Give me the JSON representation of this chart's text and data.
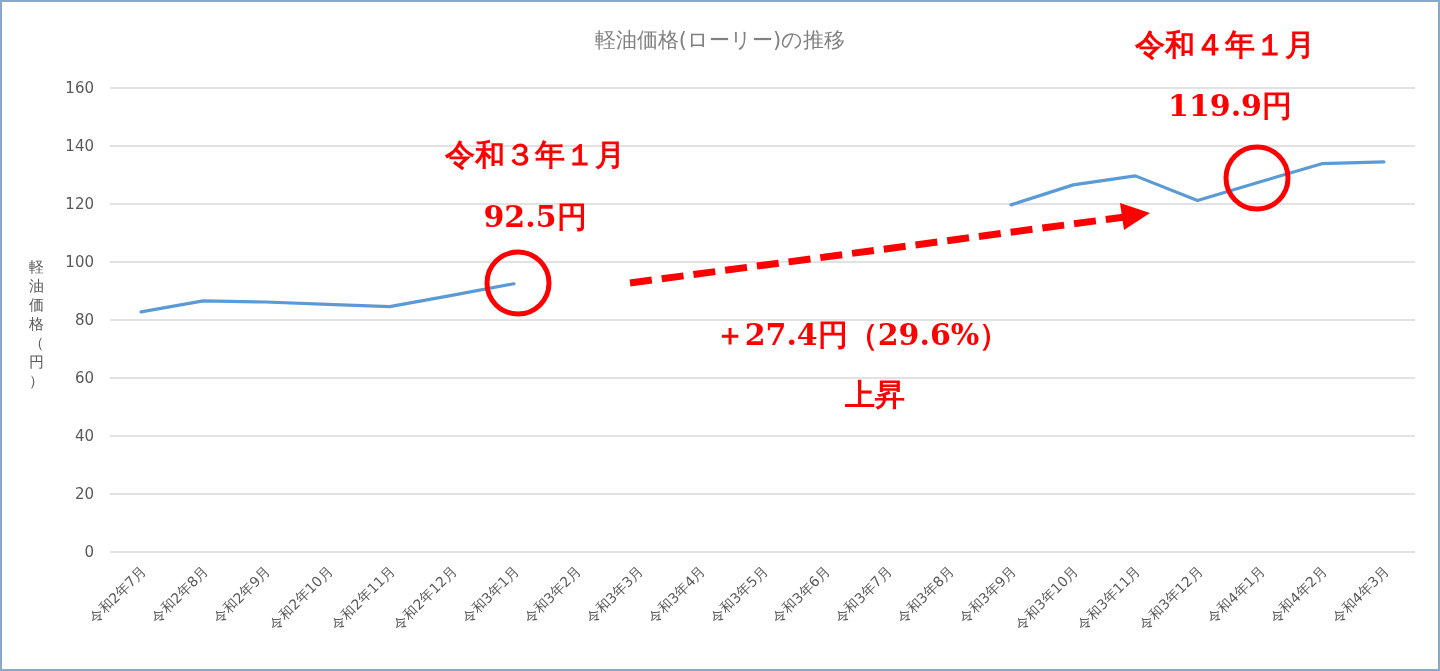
{
  "chart_data": {
    "type": "line",
    "title": "軽油価格(ローリー)の推移",
    "ylabel": "軽油価格（円）",
    "categories": [
      "令和2年7月",
      "令和2年8月",
      "令和2年9月",
      "令和2年10月",
      "令和2年11月",
      "令和2年12月",
      "令和3年1月",
      "令和3年2月",
      "令和3年3月",
      "令和3年4月",
      "令和3年5月",
      "令和3年6月",
      "令和3年7月",
      "令和3年8月",
      "令和3年9月",
      "令和3年10月",
      "令和3年11月",
      "令和3年12月",
      "令和4年1月",
      "令和4年2月",
      "令和4年3月"
    ],
    "series": [
      {
        "color": "#5b9bd5",
        "values": [
          82.8,
          86.6,
          86.2,
          85.4,
          84.6,
          88.5,
          92.5,
          null,
          null,
          null,
          null,
          null,
          null,
          null,
          119.7,
          126.6,
          129.7,
          121.2,
          127.6,
          133.9,
          134.5
        ]
      }
    ],
    "ylim": [
      0,
      160
    ],
    "yticks": [
      0,
      20,
      40,
      60,
      80,
      100,
      120,
      140,
      160
    ],
    "grid": "y",
    "marker": "none",
    "line_style": "solid",
    "annotations": [
      "令和３年１月",
      "92.5円",
      "令和４年１月",
      "119.9円",
      "＋27.4円（29.6%）",
      "上昇"
    ]
  }
}
